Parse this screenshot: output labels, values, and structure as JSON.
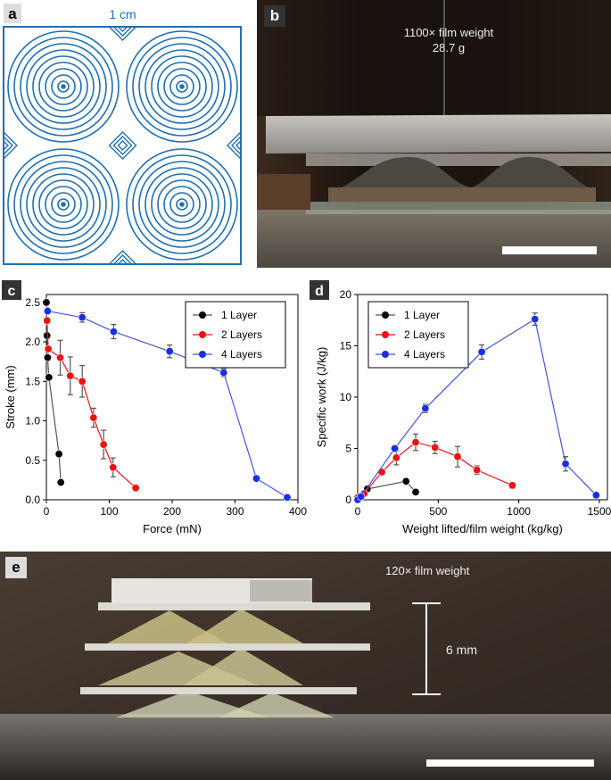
{
  "panels": {
    "a": {
      "label": "a",
      "scale_text": "1 cm",
      "pattern_color": "#1f6fb4"
    },
    "b": {
      "label": "b",
      "caption_line1": "1100× film weight",
      "caption_line2": "28.7 g"
    },
    "e": {
      "label": "e",
      "caption": "120× film weight",
      "dimension_text": "6 mm"
    }
  },
  "chart_data": [
    {
      "type": "line",
      "panel_label": "c",
      "xlabel": "Force (mN)",
      "ylabel": "Stroke (mm)",
      "xlim": [
        0,
        400
      ],
      "ylim": [
        0,
        2.6
      ],
      "xticks": [
        "0",
        "100",
        "200",
        "300",
        "400"
      ],
      "yticks": [
        "0.0",
        "0.5",
        "1.0",
        "1.5",
        "2.0",
        "2.5"
      ],
      "legend_position": "top-right",
      "series": [
        {
          "name": "1 Layer",
          "color": "#000000",
          "line_color": "#555555",
          "x": [
            0,
            1,
            2,
            4,
            20,
            23
          ],
          "y": [
            2.5,
            2.08,
            1.8,
            1.55,
            0.58,
            0.22
          ],
          "err": [
            0,
            0,
            0,
            0,
            0,
            0
          ]
        },
        {
          "name": "2 Layers",
          "color": "#ee1111",
          "line_color": "#ee1111",
          "x": [
            1,
            3,
            22,
            38,
            57,
            75,
            91,
            106,
            142
          ],
          "y": [
            2.27,
            1.91,
            1.8,
            1.57,
            1.5,
            1.04,
            0.7,
            0.41,
            0.15
          ],
          "err": [
            0,
            0,
            0.22,
            0.24,
            0.2,
            0.12,
            0.18,
            0.12,
            0
          ]
        },
        {
          "name": "4 Layers",
          "color": "#1a2ee6",
          "line_color": "#4455dd",
          "x": [
            2,
            57,
            107,
            196,
            282,
            334,
            383
          ],
          "y": [
            2.39,
            2.31,
            2.13,
            1.88,
            1.61,
            0.27,
            0.03
          ],
          "err": [
            0,
            0.06,
            0.09,
            0.08,
            0.05,
            0,
            0
          ]
        }
      ]
    },
    {
      "type": "line",
      "panel_label": "d",
      "xlabel": "Weight lifted/film weight (kg/kg)",
      "ylabel": "Specific work (J/kg)",
      "xlim": [
        0,
        1550
      ],
      "ylim": [
        0,
        20
      ],
      "xticks": [
        "0",
        "500",
        "1000",
        "1500"
      ],
      "yticks": [
        "0",
        "5",
        "10",
        "15",
        "20"
      ],
      "legend_position": "top-left",
      "series": [
        {
          "name": "1 Layer",
          "color": "#000000",
          "line_color": "#555555",
          "x": [
            0,
            60,
            300,
            360
          ],
          "y": [
            0,
            1.05,
            1.8,
            0.75
          ],
          "err": [
            0,
            0,
            0,
            0
          ]
        },
        {
          "name": "2 Layers",
          "color": "#ee1111",
          "line_color": "#ee1111",
          "x": [
            0,
            40,
            150,
            240,
            360,
            480,
            620,
            740,
            960
          ],
          "y": [
            0.2,
            0.6,
            2.7,
            4.1,
            5.6,
            5.1,
            4.2,
            2.9,
            1.4
          ],
          "err": [
            0,
            0,
            0,
            0.7,
            0.8,
            0.6,
            1.0,
            0.4,
            0.3
          ]
        },
        {
          "name": "4 Layers",
          "color": "#1a2ee6",
          "line_color": "#4455dd",
          "x": [
            0,
            20,
            230,
            420,
            770,
            1100,
            1290,
            1480
          ],
          "y": [
            0,
            0.3,
            5.0,
            8.9,
            14.4,
            17.6,
            3.5,
            0.45
          ],
          "err": [
            0,
            0,
            0,
            0.4,
            0.7,
            0.6,
            0.7,
            0
          ]
        }
      ]
    }
  ]
}
